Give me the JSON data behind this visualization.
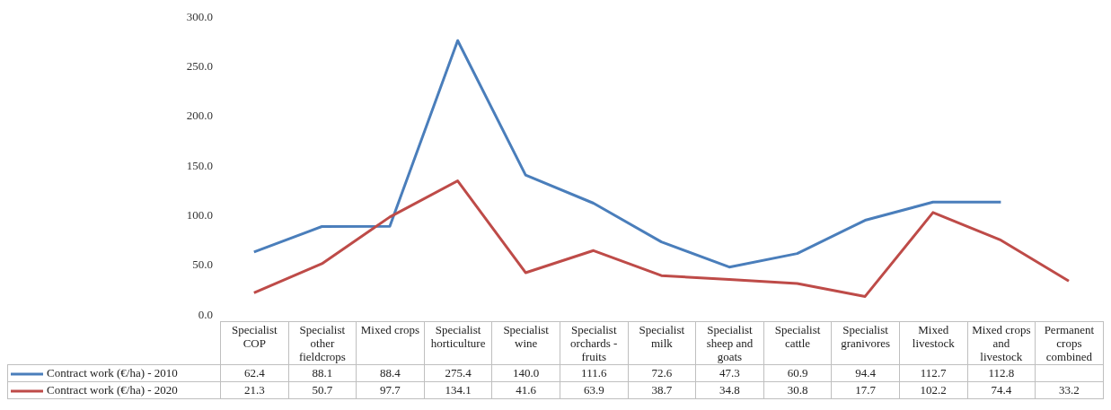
{
  "chart_data": {
    "type": "line",
    "categories": [
      "Specialist COP",
      "Specialist other fieldcrops",
      "Mixed crops",
      "Specialist horticulture",
      "Specialist wine",
      "Specialist orchards - fruits",
      "Specialist milk",
      "Specialist sheep and goats",
      "Specialist cattle",
      "Specialist granivores",
      "Mixed livestock",
      "Mixed crops and livestock",
      "Permanent crops combined"
    ],
    "series": [
      {
        "name": "Contract work (€/ha) - 2010",
        "color": "#4a7ebb",
        "values": [
          62.4,
          88.1,
          88.4,
          275.4,
          140.0,
          111.6,
          72.6,
          47.3,
          60.9,
          94.4,
          112.7,
          112.8,
          null
        ],
        "value_labels": [
          "62.4",
          "88.1",
          "88.4",
          "275.4",
          "140.0",
          "111.6",
          "72.6",
          "47.3",
          "60.9",
          "94.4",
          "112.7",
          "112.8",
          null
        ]
      },
      {
        "name": "Contract work (€/ha) - 2020",
        "color": "#be4b48",
        "values": [
          21.3,
          50.7,
          97.7,
          134.1,
          41.6,
          63.9,
          38.7,
          34.8,
          30.8,
          17.7,
          102.2,
          74.4,
          33.2
        ],
        "value_labels": [
          "21.3",
          "50.7",
          "97.7",
          "134.1",
          "41.6",
          "63.9",
          "38.7",
          "34.8",
          "30.8",
          "17.7",
          "102.2",
          "74.4",
          "33.2"
        ]
      }
    ],
    "ylim": [
      0,
      300
    ],
    "yticks": [
      {
        "value": 0,
        "label": "0.0"
      },
      {
        "value": 50,
        "label": "50.0"
      },
      {
        "value": 100,
        "label": "100.0"
      },
      {
        "value": 150,
        "label": "150.0"
      },
      {
        "value": 200,
        "label": "200.0"
      },
      {
        "value": 250,
        "label": "250.0"
      },
      {
        "value": 300,
        "label": "300.0"
      }
    ],
    "grid": false,
    "legend": "bottom",
    "marker": "none",
    "line_style": "solid"
  }
}
